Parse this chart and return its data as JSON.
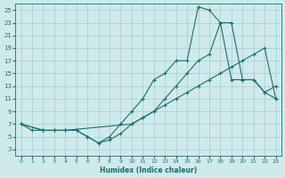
{
  "xlabel": "Humidex (Indice chaleur)",
  "bg_color": "#ceeaea",
  "grid_color": "#a8cccc",
  "line_color": "#1a6e6e",
  "xlim": [
    -0.5,
    23.5
  ],
  "ylim": [
    2,
    26
  ],
  "xticks": [
    0,
    1,
    2,
    3,
    4,
    5,
    6,
    7,
    8,
    9,
    10,
    11,
    12,
    13,
    14,
    15,
    16,
    17,
    18,
    19,
    20,
    21,
    22,
    23
  ],
  "yticks": [
    3,
    5,
    7,
    9,
    11,
    13,
    15,
    17,
    19,
    21,
    23,
    25
  ],
  "line1_x": [
    0,
    1,
    2,
    3,
    4,
    5,
    6,
    7,
    8,
    9,
    10,
    11,
    12,
    13,
    14,
    15,
    16,
    17,
    18,
    19,
    20,
    21,
    22,
    23
  ],
  "line1_y": [
    7,
    6,
    6,
    6,
    6,
    6,
    5,
    4,
    5,
    7,
    9,
    11,
    14,
    15,
    17,
    17,
    25.5,
    25,
    23,
    14,
    14,
    14,
    12,
    11
  ],
  "line2_x": [
    0,
    2,
    3,
    4,
    5,
    6,
    7,
    8,
    9,
    10,
    11,
    12,
    13,
    14,
    15,
    16,
    17,
    18,
    19,
    20,
    21,
    22,
    23
  ],
  "line2_y": [
    7,
    6,
    6,
    6,
    6,
    5,
    4,
    4.5,
    5.5,
    7,
    8,
    9,
    10,
    11,
    12,
    13,
    14,
    15,
    16,
    17,
    18,
    19,
    11
  ],
  "line3_x": [
    0,
    2,
    3,
    4,
    10,
    11,
    12,
    13,
    14,
    15,
    16,
    17,
    18,
    19,
    20,
    21,
    22,
    23
  ],
  "line3_y": [
    7,
    6,
    6,
    6,
    7,
    8,
    9,
    11,
    13,
    15,
    17,
    18,
    23,
    23,
    14,
    14,
    12,
    13
  ]
}
